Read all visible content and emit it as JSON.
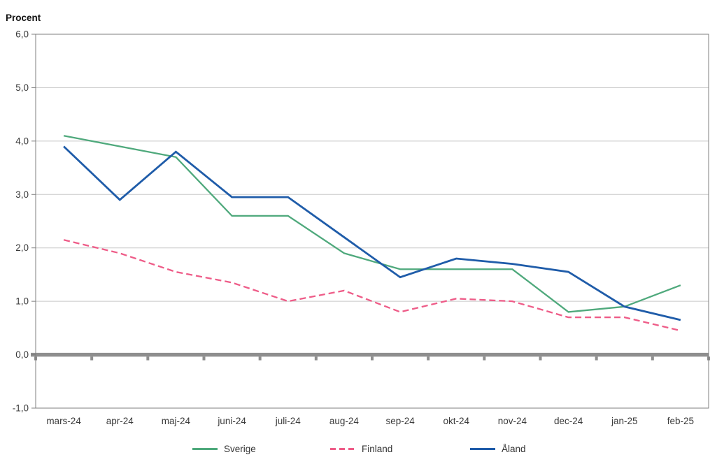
{
  "chart_data": {
    "type": "line",
    "y_axis_title": "Procent",
    "categories": [
      "mars-24",
      "apr-24",
      "maj-24",
      "juni-24",
      "juli-24",
      "aug-24",
      "sep-24",
      "okt-24",
      "nov-24",
      "dec-24",
      "jan-25",
      "feb-25"
    ],
    "series": [
      {
        "name": "Sverige",
        "color": "#4FA97C",
        "line_style": "solid",
        "values": [
          4.1,
          3.9,
          3.7,
          2.6,
          2.6,
          1.9,
          1.6,
          1.6,
          1.6,
          0.8,
          0.9,
          1.3
        ]
      },
      {
        "name": "Finland",
        "color": "#EE5C88",
        "line_style": "dashed",
        "values": [
          2.15,
          1.9,
          1.55,
          1.35,
          1.0,
          1.2,
          0.8,
          1.05,
          1.0,
          0.7,
          0.7,
          0.45
        ]
      },
      {
        "name": "Åland",
        "color": "#1F5CA9",
        "line_style": "solid",
        "values": [
          3.9,
          2.9,
          3.8,
          2.95,
          2.95,
          2.2,
          1.45,
          1.8,
          1.7,
          1.55,
          0.9,
          0.65
        ]
      }
    ],
    "ylim": [
      -1,
      6
    ],
    "ytick_step": 1,
    "ytick_labels": [
      "6,0",
      "5,0",
      "4,0",
      "3,0",
      "2,0",
      "1,0",
      "0,0",
      "-1,0"
    ],
    "grid": true,
    "legend_position": "bottom",
    "axis_colors": {
      "gridline": "#C8C8C8",
      "plot_border": "#7F7F7F",
      "zero_line": "#8E8E8E",
      "tick_text": "#3A3A3A"
    }
  }
}
